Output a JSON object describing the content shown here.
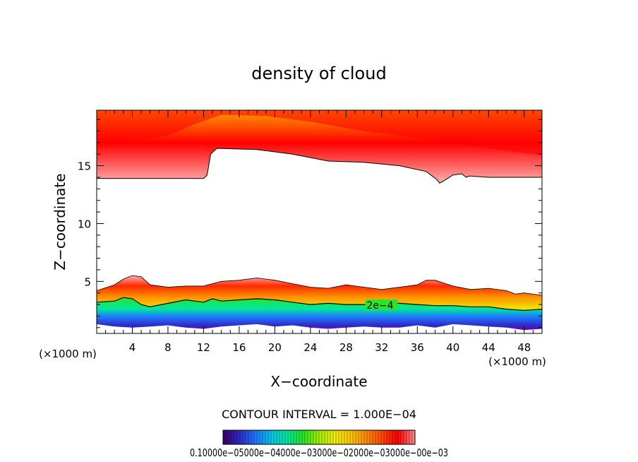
{
  "chart_data": {
    "type": "heatmap",
    "title": "density of cloud",
    "xlabel": "X−coordinate",
    "ylabel": "Z−coordinate",
    "x_unit": "(×1000 m)",
    "y_unit": "(×1000 m)",
    "xlim": [
      0,
      50
    ],
    "ylim": [
      0.5,
      19.8
    ],
    "x_ticks": [
      4,
      8,
      12,
      16,
      20,
      24,
      28,
      32,
      36,
      40,
      44,
      48
    ],
    "y_ticks": [
      5,
      10,
      15
    ],
    "upper_cloud": {
      "top": 19.8,
      "base": [
        [
          0,
          13.9
        ],
        [
          12,
          13.9
        ],
        [
          12.4,
          14.2
        ],
        [
          12.8,
          16.0
        ],
        [
          13.5,
          16.5
        ],
        [
          18,
          16.4
        ],
        [
          22,
          16.0
        ],
        [
          26,
          15.4
        ],
        [
          30,
          15.3
        ],
        [
          34,
          15.0
        ],
        [
          37,
          14.5
        ],
        [
          38.2,
          13.8
        ],
        [
          38.5,
          13.5
        ],
        [
          39,
          13.7
        ],
        [
          40,
          14.2
        ],
        [
          41,
          14.3
        ],
        [
          41.5,
          14.0
        ],
        [
          41.8,
          14.1
        ],
        [
          42,
          14.1
        ],
        [
          44,
          14.0
        ],
        [
          46,
          14.0
        ],
        [
          48,
          14.0
        ],
        [
          50,
          14.0
        ]
      ],
      "core": [
        [
          0,
          16.6
        ],
        [
          8,
          17.6
        ],
        [
          11,
          18.6
        ],
        [
          14,
          19.4
        ],
        [
          19,
          19.3
        ],
        [
          24,
          18.8
        ],
        [
          30,
          18.0
        ],
        [
          36,
          17.4
        ],
        [
          42,
          16.7
        ],
        [
          50,
          15.9
        ]
      ]
    },
    "lower_cloud": {
      "top": [
        [
          0,
          4.2
        ],
        [
          2,
          4.7
        ],
        [
          3,
          5.2
        ],
        [
          4,
          5.5
        ],
        [
          5,
          5.4
        ],
        [
          6,
          4.7
        ],
        [
          8,
          4.5
        ],
        [
          10,
          4.6
        ],
        [
          12,
          4.6
        ],
        [
          14,
          5.0
        ],
        [
          16,
          5.1
        ],
        [
          18,
          5.3
        ],
        [
          20,
          5.1
        ],
        [
          22,
          4.8
        ],
        [
          24,
          4.5
        ],
        [
          26,
          4.4
        ],
        [
          28,
          4.7
        ],
        [
          30,
          4.5
        ],
        [
          32,
          4.3
        ],
        [
          34,
          4.5
        ],
        [
          36,
          4.7
        ],
        [
          37,
          5.1
        ],
        [
          38,
          5.1
        ],
        [
          40,
          4.6
        ],
        [
          42,
          4.3
        ],
        [
          44,
          4.4
        ],
        [
          46,
          4.2
        ],
        [
          47,
          3.9
        ],
        [
          48,
          4.0
        ],
        [
          50,
          3.8
        ]
      ],
      "contour_2e4": [
        [
          0,
          3.2
        ],
        [
          2,
          3.3
        ],
        [
          3,
          3.6
        ],
        [
          4,
          3.5
        ],
        [
          5,
          3.0
        ],
        [
          6,
          2.8
        ],
        [
          8,
          3.1
        ],
        [
          10,
          3.4
        ],
        [
          12,
          3.2
        ],
        [
          13,
          3.5
        ],
        [
          14,
          3.3
        ],
        [
          16,
          3.4
        ],
        [
          18,
          3.5
        ],
        [
          20,
          3.4
        ],
        [
          22,
          3.2
        ],
        [
          24,
          3.0
        ],
        [
          26,
          3.1
        ],
        [
          28,
          3.0
        ],
        [
          30,
          3.0
        ],
        [
          32,
          3.1
        ],
        [
          34,
          3.1
        ],
        [
          36,
          3.0
        ],
        [
          38,
          2.9
        ],
        [
          40,
          2.9
        ],
        [
          42,
          2.8
        ],
        [
          44,
          2.8
        ],
        [
          46,
          2.6
        ],
        [
          48,
          2.5
        ],
        [
          50,
          2.6
        ]
      ],
      "bottom": [
        [
          0,
          1.3
        ],
        [
          2,
          1.1
        ],
        [
          4,
          1.0
        ],
        [
          6,
          1.1
        ],
        [
          8,
          1.2
        ],
        [
          10,
          1.0
        ],
        [
          12,
          0.9
        ],
        [
          14,
          1.1
        ],
        [
          16,
          1.2
        ],
        [
          18,
          1.3
        ],
        [
          20,
          1.1
        ],
        [
          22,
          1.2
        ],
        [
          24,
          1.0
        ],
        [
          26,
          0.9
        ],
        [
          28,
          1.0
        ],
        [
          30,
          1.1
        ],
        [
          32,
          1.0
        ],
        [
          34,
          1.0
        ],
        [
          36,
          1.2
        ],
        [
          38,
          1.0
        ],
        [
          40,
          1.3
        ],
        [
          42,
          1.2
        ],
        [
          44,
          1.1
        ],
        [
          46,
          1.0
        ],
        [
          48,
          0.8
        ],
        [
          50,
          0.9
        ]
      ]
    },
    "contour_labels": [
      {
        "text": "2e−4",
        "x": 30.3,
        "y": 2.95
      }
    ],
    "footer": "CONTOUR INTERVAL = 1.000E−04",
    "colorbar_labels": "0.10000e−05000e−04000e−03000e−02000e−03000e−00e−03",
    "colormap": [
      "#3a006e",
      "#2d2dc8",
      "#1f78ff",
      "#00c8e6",
      "#00e6a0",
      "#28e628",
      "#a0f000",
      "#f0f000",
      "#ffc800",
      "#ff8c00",
      "#ff4a00",
      "#ff0000",
      "#ff8080"
    ]
  }
}
